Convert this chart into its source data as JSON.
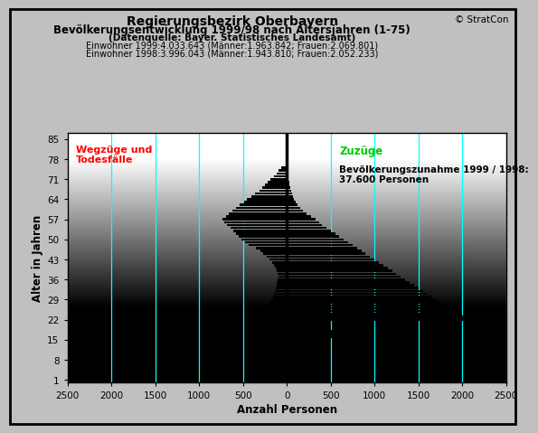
{
  "title_line1": "Regierungsbezirk Oberbayern",
  "title_line2": "Bevölkerungsentwicklung 1999/98 nach Altersjahren (1-75)",
  "title_line3": "(Datenquelle: Bayer. Statistisches Landesamt)",
  "title_line4": "Einwohner 1999:4.033.643 (Männer:1.963.842; Frauen:2.069.801)",
  "title_line5": "Einwohner 1998:3.996.043 (Männer:1.943.810; Frauen:2.052.233)",
  "copyright": "© StratCon",
  "xlabel": "Anzahl Personen",
  "ylabel": "Alter in Jahren",
  "xlim": [
    -2500,
    2500
  ],
  "ylim": [
    0,
    87
  ],
  "yticks": [
    1,
    8,
    15,
    22,
    29,
    36,
    43,
    50,
    57,
    64,
    71,
    78,
    85
  ],
  "xticks": [
    -2500,
    -2000,
    -1500,
    -1000,
    -500,
    0,
    500,
    1000,
    1500,
    2000,
    2500
  ],
  "xtick_labels": [
    "2500",
    "2000",
    "1500",
    "1000",
    "500",
    "0",
    "500",
    "1000",
    "1500",
    "2000",
    "2500"
  ],
  "cyan_lines": [
    -2000,
    -1500,
    -1000,
    -500,
    500,
    1000,
    1500,
    2000,
    2500
  ],
  "label_left": "Wegzüge und\nTodesfälle",
  "label_right": "Zuzüge",
  "label_increase": "Bevölkerungszunahme 1999 / 1998:\n37.600 Personen",
  "bar_color": "#000000",
  "ages": [
    1,
    2,
    3,
    4,
    5,
    6,
    7,
    8,
    9,
    10,
    11,
    12,
    13,
    14,
    15,
    16,
    17,
    18,
    19,
    20,
    21,
    22,
    23,
    24,
    25,
    26,
    27,
    28,
    29,
    30,
    31,
    32,
    33,
    34,
    35,
    36,
    37,
    38,
    39,
    40,
    41,
    42,
    43,
    44,
    45,
    46,
    47,
    48,
    49,
    50,
    51,
    52,
    53,
    54,
    55,
    56,
    57,
    58,
    59,
    60,
    61,
    62,
    63,
    64,
    65,
    66,
    67,
    68,
    69,
    70,
    71,
    72,
    73,
    74,
    75
  ],
  "values_neg": [
    -50,
    -60,
    -70,
    -80,
    -90,
    -100,
    -110,
    -120,
    -130,
    -140,
    -150,
    -160,
    -180,
    -200,
    -220,
    -230,
    -250,
    -270,
    -300,
    -350,
    -380,
    -400,
    -350,
    -300,
    -280,
    -250,
    -220,
    -200,
    -180,
    -160,
    -150,
    -140,
    -130,
    -120,
    -110,
    -100,
    -90,
    -100,
    -110,
    -130,
    -150,
    -170,
    -200,
    -230,
    -270,
    -300,
    -350,
    -430,
    -480,
    -520,
    -550,
    -580,
    -610,
    -640,
    -680,
    -710,
    -730,
    -690,
    -660,
    -620,
    -580,
    -540,
    -490,
    -450,
    -400,
    -360,
    -310,
    -280,
    -250,
    -220,
    -190,
    -150,
    -120,
    -90,
    -60
  ],
  "values_pos": [
    80,
    100,
    120,
    130,
    150,
    180,
    200,
    220,
    250,
    270,
    300,
    330,
    380,
    430,
    500,
    550,
    600,
    550,
    500,
    420,
    380,
    2200,
    2100,
    2000,
    1900,
    1850,
    1800,
    1750,
    1700,
    1650,
    1600,
    1550,
    1500,
    1450,
    1400,
    1350,
    1300,
    1250,
    1200,
    1150,
    1100,
    1050,
    1000,
    950,
    900,
    850,
    800,
    750,
    700,
    650,
    600,
    550,
    500,
    450,
    400,
    370,
    330,
    280,
    230,
    180,
    150,
    120,
    100,
    80,
    70,
    60,
    50,
    40,
    30,
    25,
    20,
    15,
    12,
    10,
    8
  ]
}
